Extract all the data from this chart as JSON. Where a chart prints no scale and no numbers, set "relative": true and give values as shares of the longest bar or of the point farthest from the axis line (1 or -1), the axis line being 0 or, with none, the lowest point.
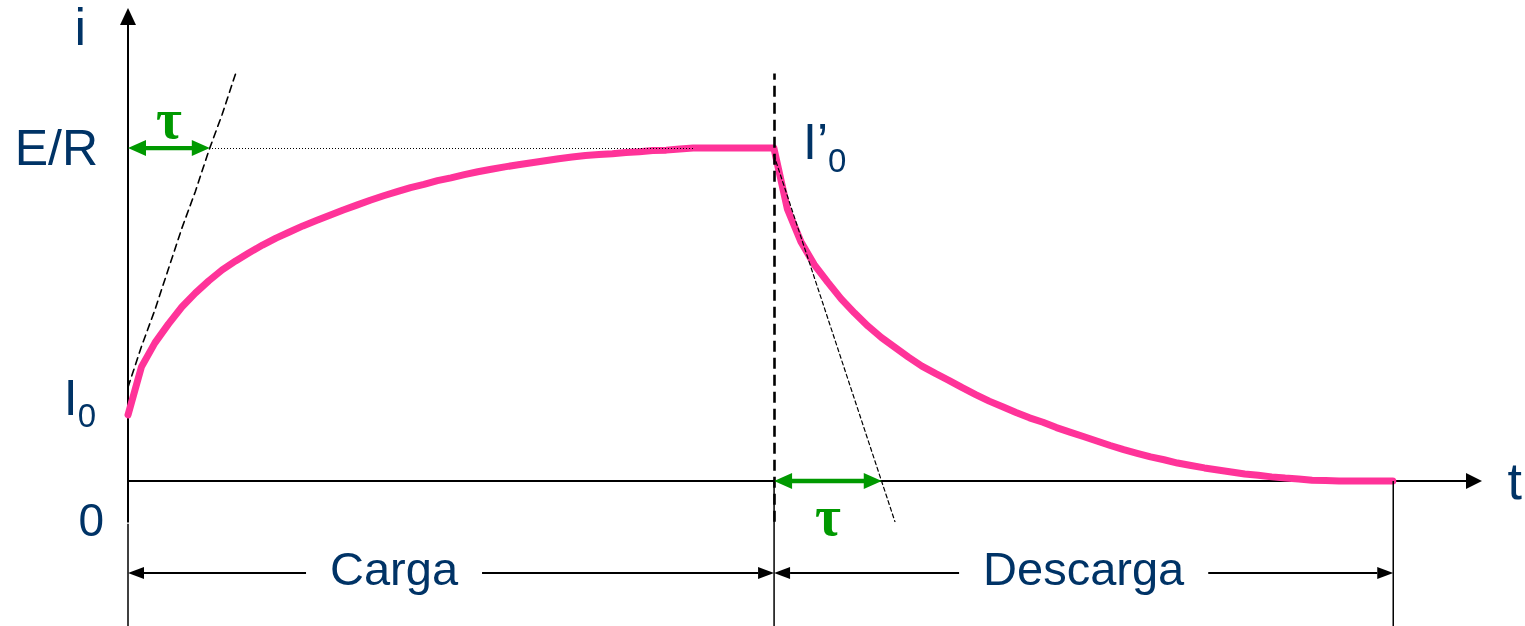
{
  "chart_data": {
    "type": "line",
    "relative": true,
    "xlabel": "t",
    "ylabel": "i",
    "categories": [
      null,
      null,
      null,
      null,
      null,
      null,
      null,
      null,
      null,
      null,
      null,
      null,
      null,
      null,
      null,
      null,
      null,
      null,
      null,
      null,
      null,
      null,
      null,
      null,
      null,
      null,
      null,
      null,
      null,
      null,
      null,
      null,
      null,
      null,
      null,
      null,
      null,
      null,
      null,
      null,
      null,
      null,
      null,
      null,
      null,
      null,
      null,
      null,
      null,
      null,
      null,
      null,
      null,
      null,
      null,
      null,
      null,
      null,
      null,
      null,
      null,
      null,
      null,
      null,
      null,
      null,
      null,
      null,
      null,
      null,
      null,
      null,
      null,
      null,
      null,
      null,
      null,
      null,
      null,
      null,
      null,
      null,
      null,
      null,
      null,
      null,
      null,
      null,
      null,
      null,
      null,
      null,
      null,
      null,
      null,
      null,
      null,
      null,
      null,
      null,
      null
    ],
    "series": [
      {
        "color": "#ff3399",
        "values": [
          0.162,
          0.28,
          0.339,
          0.385,
          0.427,
          0.461,
          0.491,
          0.518,
          0.54,
          0.56,
          0.579,
          0.596,
          0.611,
          0.626,
          0.639,
          0.652,
          0.665,
          0.677,
          0.689,
          0.7,
          0.71,
          0.72,
          0.728,
          0.737,
          0.744,
          0.752,
          0.759,
          0.765,
          0.771,
          0.776,
          0.781,
          0.786,
          0.791,
          0.795,
          0.799,
          0.801,
          0.803,
          0.806,
          0.808,
          0.811,
          0.812,
          0.815,
          0.817,
          0.817,
          0.817,
          0.817,
          0.817,
          0.817,
          0.817,
          0.668,
          0.588,
          0.531,
          0.488,
          0.447,
          0.412,
          0.38,
          0.352,
          0.328,
          0.304,
          0.282,
          0.264,
          0.247,
          0.229,
          0.212,
          0.196,
          0.182,
          0.168,
          0.155,
          0.144,
          0.131,
          0.12,
          0.109,
          0.098,
          0.087,
          0.077,
          0.068,
          0.059,
          0.052,
          0.044,
          0.038,
          0.032,
          0.027,
          0.022,
          0.017,
          0.014,
          0.01,
          0.007,
          0.005,
          0.002,
          0.001,
          0,
          0,
          0,
          0,
          0,
          null,
          null,
          null,
          null,
          null,
          null
        ]
      },
      {
        "color": "#000000",
        "line_style": "dashed",
        "values": [
          0.23,
          0.33,
          0.42,
          0.52,
          0.62,
          0.71,
          0.81,
          0.9,
          1,
          null,
          null,
          null,
          null,
          null,
          null,
          null,
          null,
          null,
          null,
          null,
          null,
          null,
          null,
          null,
          null,
          null,
          null,
          null,
          null,
          null,
          null,
          null,
          null,
          null,
          null,
          null,
          null,
          null,
          null,
          null,
          null,
          null,
          null,
          null,
          null,
          null,
          null,
          null,
          null,
          null,
          null,
          null,
          null,
          null,
          null,
          null,
          null,
          null,
          null,
          null,
          null,
          null,
          null,
          null,
          null,
          null,
          null,
          null,
          null,
          null,
          null,
          null,
          null,
          null,
          null,
          null,
          null,
          null,
          null,
          null,
          null,
          null,
          null,
          null,
          null,
          null,
          null,
          null,
          null,
          null,
          null,
          null,
          null,
          null,
          null,
          null,
          null,
          null,
          null,
          null,
          null
        ]
      },
      {
        "color": "#000000",
        "line_style": "dashed",
        "values": [
          null,
          null,
          null,
          null,
          null,
          null,
          null,
          null,
          null,
          null,
          null,
          null,
          null,
          null,
          null,
          null,
          null,
          null,
          null,
          null,
          null,
          null,
          null,
          null,
          null,
          null,
          null,
          null,
          null,
          null,
          null,
          null,
          null,
          null,
          null,
          null,
          null,
          null,
          null,
          null,
          null,
          null,
          null,
          null,
          null,
          null,
          null,
          null,
          0.8,
          0.7,
          0.6,
          0.5,
          0.4,
          0.3,
          0.2,
          0.1,
          0,
          -0.1,
          null,
          null,
          null,
          null,
          null,
          null,
          null,
          null,
          null,
          null,
          null,
          null,
          null,
          null,
          null,
          null,
          null,
          null,
          null,
          null,
          null,
          null,
          null,
          null,
          null,
          null,
          null,
          null,
          null,
          null,
          null,
          null,
          null,
          null,
          null,
          null,
          null,
          null,
          null,
          null,
          null,
          null,
          null
        ]
      }
    ],
    "ref_lines": [
      {
        "axis": "y",
        "value": 0.817,
        "label": "E/R",
        "color": "#000000",
        "line_style": "dotted"
      }
    ],
    "annotations": [
      "I$_{0}$",
      "0",
      "I’$_{0}$",
      "τ",
      "τ",
      "Carga",
      "Descarga"
    ]
  }
}
